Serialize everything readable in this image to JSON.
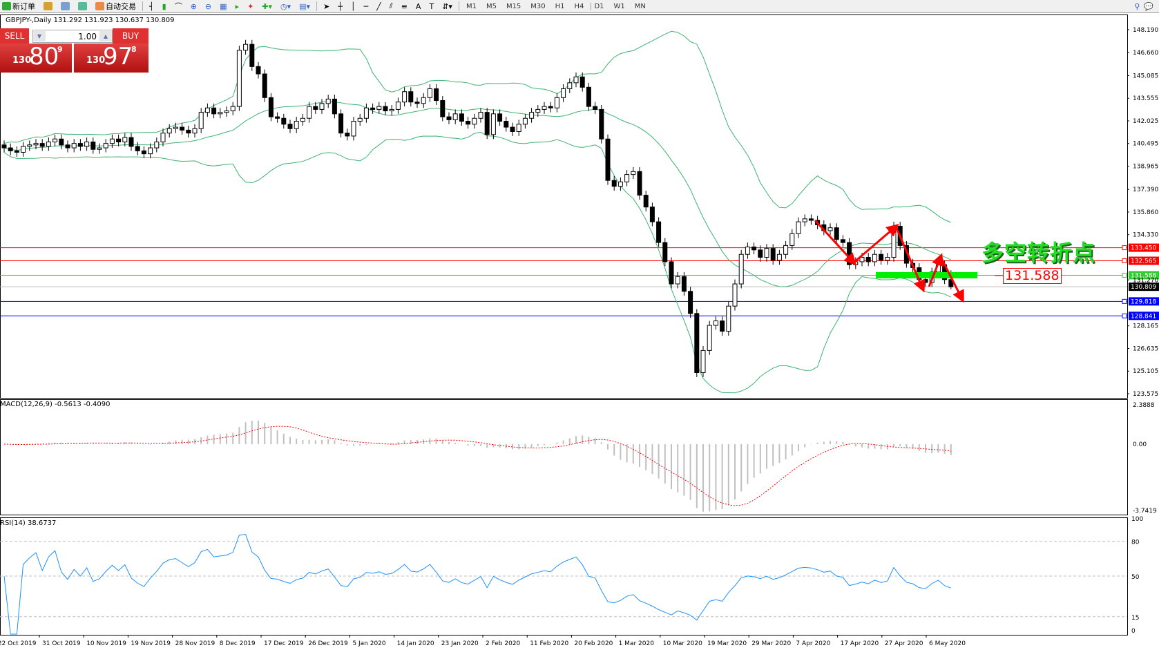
{
  "toolbar": {
    "new_order": "新订单",
    "auto_trading": "自动交易",
    "timeframes": [
      "M1",
      "M5",
      "M15",
      "M30",
      "H1",
      "H4",
      "D1",
      "W1",
      "MN"
    ],
    "active_timeframe": "D1"
  },
  "chart": {
    "symbol_line": "GBPJPY-,Daily  131.292 131.923 130.637 130.809"
  },
  "trade_panel": {
    "sell_label": "SELL",
    "buy_label": "BUY",
    "lot": "1.00",
    "sell_prefix": "130",
    "sell_big": "80",
    "sell_sup": "9",
    "buy_prefix": "130",
    "buy_big": "97",
    "buy_sup": "8"
  },
  "annotation": {
    "text": "多空转折点",
    "price_box": "131.588",
    "colors": {
      "text": "#22dd22",
      "arrows": "#ff0000",
      "zone": "#00ee00"
    }
  },
  "chart_data": {
    "type": "candlestick",
    "symbol": "GBPJPY-",
    "timeframe": "Daily",
    "last_bar": {
      "open": 131.292,
      "high": 131.923,
      "low": 130.637,
      "close": 130.809
    },
    "ylim": [
      123.575,
      148.19
    ],
    "price_ticks": [
      "148.190",
      "146.660",
      "145.085",
      "143.555",
      "142.025",
      "140.495",
      "138.965",
      "137.390",
      "135.860",
      "134.330",
      "131.270",
      "128.165",
      "126.635",
      "125.105",
      "123.575"
    ],
    "x_ticks": [
      "22 Oct 2019",
      "31 Oct 2019",
      "10 Nov 2019",
      "19 Nov 2019",
      "28 Nov 2019",
      "8 Dec 2019",
      "17 Dec 2019",
      "26 Dec 2019",
      "5 Jan 2020",
      "14 Jan 2020",
      "23 Jan 2020",
      "2 Feb 2020",
      "11 Feb 2020",
      "20 Feb 2020",
      "1 Mar 2020",
      "10 Mar 2020",
      "19 Mar 2020",
      "29 Mar 2020",
      "7 Apr 2020",
      "17 Apr 2020",
      "27 Apr 2020",
      "6 May 2020"
    ],
    "closes": [
      140.2,
      140.0,
      139.9,
      140.3,
      140.4,
      140.5,
      140.3,
      140.6,
      140.8,
      140.4,
      140.2,
      140.5,
      140.3,
      140.6,
      140.1,
      140.2,
      140.5,
      140.8,
      140.6,
      140.9,
      140.3,
      140.0,
      139.8,
      140.2,
      140.6,
      141.2,
      141.5,
      141.6,
      141.4,
      141.2,
      141.5,
      142.6,
      142.9,
      142.5,
      142.6,
      142.7,
      143.0,
      146.8,
      147.2,
      145.7,
      145.2,
      143.6,
      142.3,
      142.2,
      141.8,
      141.5,
      142.0,
      142.2,
      143.0,
      142.8,
      143.2,
      143.5,
      142.5,
      141.2,
      141.0,
      142.0,
      142.2,
      142.9,
      142.8,
      143.0,
      142.7,
      142.8,
      143.3,
      144.0,
      143.3,
      143.2,
      143.6,
      144.2,
      143.4,
      142.3,
      142.1,
      142.5,
      142.0,
      141.8,
      142.2,
      142.6,
      141.1,
      142.5,
      142.0,
      141.6,
      141.3,
      141.8,
      142.2,
      142.6,
      142.8,
      143.0,
      142.9,
      143.6,
      144.2,
      144.6,
      145.0,
      144.3,
      143.0,
      142.8,
      140.8,
      138.0,
      137.6,
      137.9,
      138.4,
      138.6,
      137.0,
      136.2,
      135.2,
      133.8,
      132.5,
      131.0,
      131.5,
      130.5,
      129.0,
      125.0,
      126.5,
      128.2,
      128.5,
      127.8,
      129.5,
      131.0,
      133.0,
      133.5,
      133.3,
      132.8,
      133.4,
      132.6,
      133.0,
      133.6,
      134.4,
      135.2,
      135.4,
      135.3,
      135.0,
      134.6,
      134.8,
      134.0,
      133.8,
      132.3,
      132.5,
      132.8,
      132.5,
      133.0,
      132.6,
      132.8,
      134.9,
      133.6,
      132.4,
      132.1,
      131.3,
      131.1,
      131.8,
      132.3,
      131.292,
      130.809
    ],
    "levels": [
      {
        "price": "133.450",
        "color": "#ff0000"
      },
      {
        "price": "132.565",
        "color": "#ff0000"
      },
      {
        "price": "131.588",
        "color": "#33cc33"
      },
      {
        "price": "130.809",
        "color": "#000000"
      },
      {
        "price": "129.818",
        "color": "#0000ff"
      },
      {
        "price": "128.841",
        "color": "#0000ff"
      }
    ],
    "indicators": {
      "bollinger_color": "#3cb371",
      "macd": {
        "label": "MACD(12,26,9) -0.5613 -0.4090",
        "ticks": [
          "2.3888",
          "0.00",
          "-3.7419"
        ],
        "ylim": [
          -3.7419,
          2.3888
        ]
      },
      "rsi": {
        "label": "RSI(14) 38.6737",
        "ticks": [
          "100",
          "80",
          "50",
          "15",
          "0"
        ],
        "levels": [
          80,
          50,
          15
        ],
        "color": "#1e90ff"
      }
    }
  }
}
